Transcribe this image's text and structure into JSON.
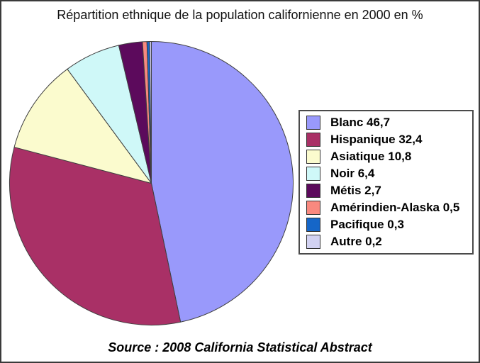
{
  "title": "Répartition ethnique de la population californienne en 2000 en %",
  "source": "Source : 2008 California Statistical Abstract",
  "chart_data": {
    "type": "pie",
    "title": "Répartition ethnique de la population californienne en 2000 en %",
    "categories": [
      "Blanc",
      "Hispanique",
      "Asiatique",
      "Noir",
      "Métis",
      "Amérindien-Alaska",
      "Pacifique",
      "Autre"
    ],
    "values": [
      46.7,
      32.4,
      10.8,
      6.4,
      2.7,
      0.5,
      0.3,
      0.2
    ],
    "legend_labels": [
      "Blanc 46,7",
      "Hispanique 32,4",
      "Asiatique 10,8",
      "Noir 6,4",
      "Métis 2,7",
      "Amérindien-Alaska 0,5",
      "Pacifique 0,3",
      "Autre 0,2"
    ],
    "colors": [
      "#9999fb",
      "#a93066",
      "#fbfbce",
      "#cff8f8",
      "#5c0a5c",
      "#f9897f",
      "#1566c8",
      "#d2d2f2"
    ],
    "slice_outline_color": "#404040",
    "start_angle_deg": 0,
    "direction": "clockwise",
    "legend_position": "right",
    "source_note": "Source : 2008 California Statistical Abstract"
  }
}
